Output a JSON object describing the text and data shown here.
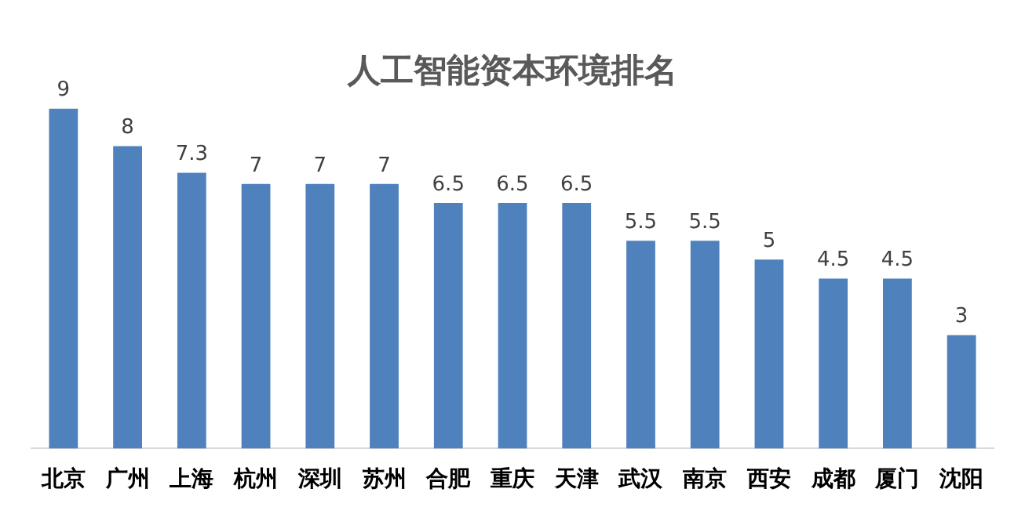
{
  "chart_data": {
    "type": "bar",
    "title": "人工智能资本环境排名",
    "categories": [
      "北京",
      "广州",
      "上海",
      "杭州",
      "深圳",
      "苏州",
      "合肥",
      "重庆",
      "天津",
      "武汉",
      "南京",
      "西安",
      "成都",
      "厦门",
      "沈阳"
    ],
    "values": [
      9,
      8,
      7.3,
      7,
      7,
      7,
      6.5,
      6.5,
      6.5,
      5.5,
      5.5,
      5,
      4.5,
      4.5,
      3
    ],
    "color": "#4f81bd",
    "data_labels": true,
    "grid": false,
    "legend": false
  }
}
